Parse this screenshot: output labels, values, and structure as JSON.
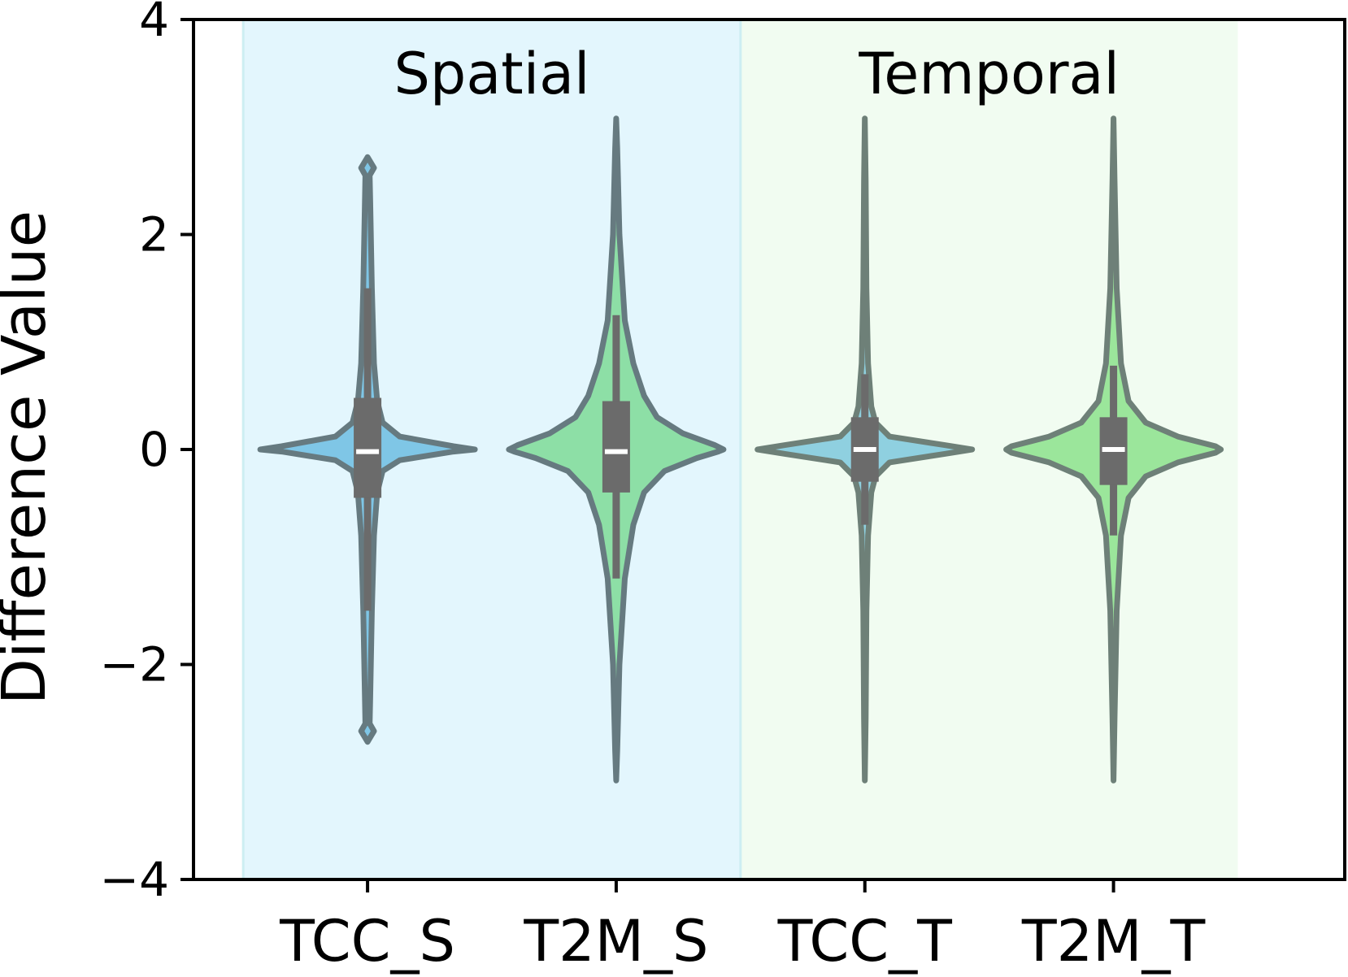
{
  "chart_data": {
    "type": "violin",
    "title": "",
    "xlabel": "",
    "ylabel": "Difference Value",
    "ylim": [
      -4,
      4
    ],
    "yticks": [
      {
        "value": 4,
        "label": "4"
      },
      {
        "value": 2,
        "label": "2"
      },
      {
        "value": 0,
        "label": "0"
      },
      {
        "value": -2,
        "label": "−2"
      },
      {
        "value": -4,
        "label": "−4"
      }
    ],
    "regions": [
      {
        "label": "Spatial",
        "from": -0.5,
        "to": 1.5,
        "color": "#e3f6fd"
      },
      {
        "label": "Temporal",
        "from": 1.5,
        "to": 3.5,
        "color": "#f1fcf1"
      }
    ],
    "categories": [
      "TCC_S",
      "T2M_S",
      "TCC_T",
      "T2M_T"
    ],
    "violins": [
      {
        "category": "TCC_S",
        "fill": "#7fc6e6",
        "edge": "#667a80",
        "median": -0.02,
        "q1": -0.45,
        "q3": 0.48,
        "whisker_low": -1.5,
        "whisker_high": 1.5,
        "profile": [
          [
            -2.72,
            0.0
          ],
          [
            -2.62,
            0.06
          ],
          [
            -2.55,
            0.02
          ],
          [
            -2.3,
            0.025
          ],
          [
            -1.5,
            0.04
          ],
          [
            -0.8,
            0.06
          ],
          [
            -0.4,
            0.09
          ],
          [
            -0.2,
            0.14
          ],
          [
            -0.1,
            0.3
          ],
          [
            -0.02,
            0.8
          ],
          [
            0.0,
            1.0
          ],
          [
            0.03,
            0.8
          ],
          [
            0.12,
            0.3
          ],
          [
            0.25,
            0.14
          ],
          [
            0.45,
            0.09
          ],
          [
            0.8,
            0.06
          ],
          [
            1.5,
            0.04
          ],
          [
            2.3,
            0.025
          ],
          [
            2.55,
            0.02
          ],
          [
            2.62,
            0.06
          ],
          [
            2.72,
            0.0
          ]
        ]
      },
      {
        "category": "T2M_S",
        "fill": "#8ddfa6",
        "edge": "#667a80",
        "median": -0.02,
        "q1": -0.4,
        "q3": 0.45,
        "whisker_low": -1.2,
        "whisker_high": 1.25,
        "profile": [
          [
            -3.08,
            0.0
          ],
          [
            -2.8,
            0.01
          ],
          [
            -2.0,
            0.03
          ],
          [
            -1.2,
            0.08
          ],
          [
            -0.7,
            0.16
          ],
          [
            -0.4,
            0.26
          ],
          [
            -0.2,
            0.45
          ],
          [
            -0.08,
            0.75
          ],
          [
            -0.02,
            0.95
          ],
          [
            0.0,
            1.0
          ],
          [
            0.04,
            0.92
          ],
          [
            0.15,
            0.62
          ],
          [
            0.3,
            0.38
          ],
          [
            0.5,
            0.26
          ],
          [
            0.8,
            0.16
          ],
          [
            1.2,
            0.08
          ],
          [
            2.0,
            0.03
          ],
          [
            2.8,
            0.01
          ],
          [
            3.08,
            0.0
          ]
        ]
      },
      {
        "category": "TCC_T",
        "fill": "#8fd0e0",
        "edge": "#6e8078",
        "median": 0.0,
        "q1": -0.3,
        "q3": 0.3,
        "whisker_low": -0.7,
        "whisker_high": 0.7,
        "profile": [
          [
            -3.08,
            0.0
          ],
          [
            -2.5,
            0.008
          ],
          [
            -1.5,
            0.015
          ],
          [
            -0.8,
            0.03
          ],
          [
            -0.4,
            0.06
          ],
          [
            -0.25,
            0.1
          ],
          [
            -0.12,
            0.23
          ],
          [
            -0.04,
            0.75
          ],
          [
            0.0,
            1.0
          ],
          [
            0.04,
            0.75
          ],
          [
            0.12,
            0.23
          ],
          [
            0.25,
            0.1
          ],
          [
            0.4,
            0.06
          ],
          [
            0.8,
            0.03
          ],
          [
            1.5,
            0.015
          ],
          [
            2.5,
            0.008
          ],
          [
            3.08,
            0.0
          ]
        ]
      },
      {
        "category": "T2M_T",
        "fill": "#9be69b",
        "edge": "#6e8078",
        "median": 0.0,
        "q1": -0.33,
        "q3": 0.3,
        "whisker_low": -0.8,
        "whisker_high": 0.78,
        "profile": [
          [
            -3.08,
            0.0
          ],
          [
            -2.5,
            0.01
          ],
          [
            -1.5,
            0.03
          ],
          [
            -0.8,
            0.07
          ],
          [
            -0.45,
            0.14
          ],
          [
            -0.25,
            0.3
          ],
          [
            -0.12,
            0.6
          ],
          [
            -0.03,
            0.95
          ],
          [
            0.0,
            1.0
          ],
          [
            0.03,
            0.95
          ],
          [
            0.12,
            0.6
          ],
          [
            0.25,
            0.3
          ],
          [
            0.45,
            0.14
          ],
          [
            0.8,
            0.07
          ],
          [
            1.5,
            0.03
          ],
          [
            2.5,
            0.01
          ],
          [
            3.08,
            0.0
          ]
        ]
      }
    ],
    "grid": false,
    "legend": "none"
  },
  "colors": {
    "box": "#6b6b6b",
    "median": "#ffffff",
    "axis": "#000000"
  }
}
